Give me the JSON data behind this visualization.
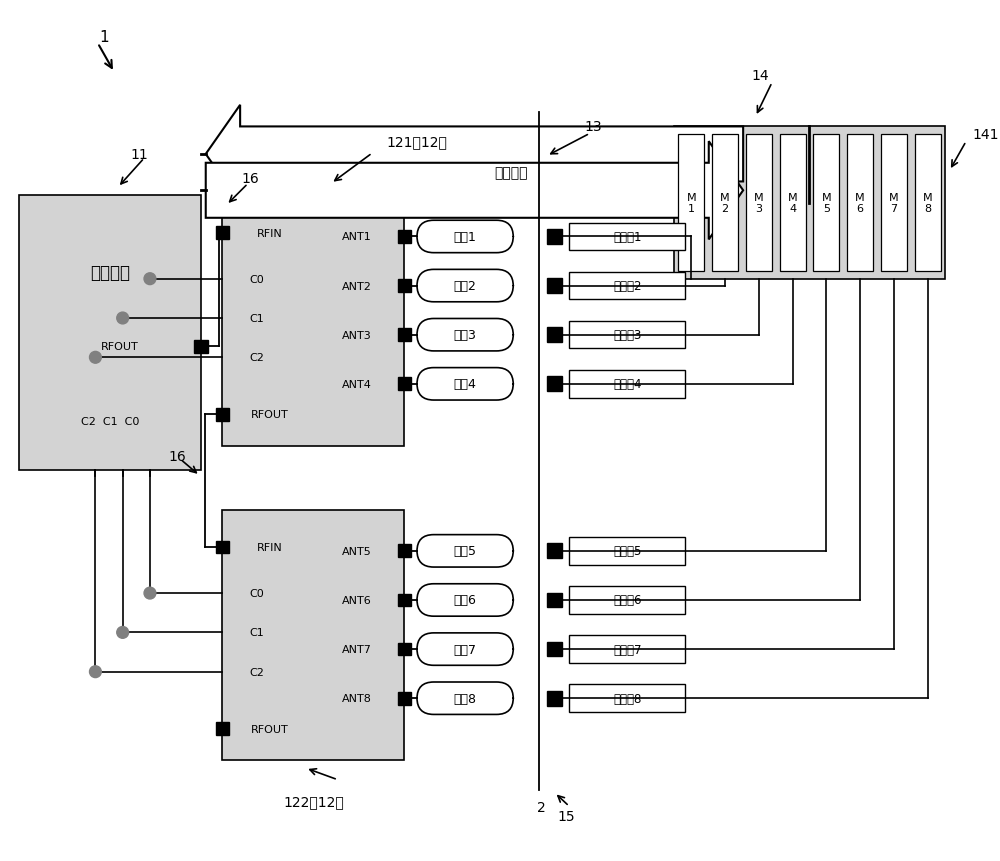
{
  "bg_color": "#ffffff",
  "gray_fill": "#d3d3d3",
  "white_fill": "#ffffff",
  "black": "#000000",
  "label_1": "1",
  "label_11": "11",
  "label_14": "14",
  "label_141": "141",
  "label_16a": "16",
  "label_16b": "16",
  "label_121": "121（12）",
  "label_122": "122（12）",
  "label_13": "13",
  "label_15": "15",
  "label_2": "2",
  "rf_module_text": "射频模块",
  "rf_module_rfout": "RFOUT",
  "rf_module_c": "C2  C1  C0",
  "data_bus_text": "数据总线",
  "mux_left_labels": [
    "RFIN",
    "C0",
    "C1",
    "C2",
    "RFOUT"
  ],
  "mux1_ant_labels": [
    "ANT1",
    "ANT2",
    "ANT3",
    "ANT4"
  ],
  "mux2_ant_labels": [
    "ANT5",
    "ANT6",
    "ANT7",
    "ANT8"
  ],
  "antenna_labels": [
    "天线1",
    "天线2",
    "天线3",
    "天线4",
    "天线5",
    "天线6",
    "天线7",
    "天线8"
  ],
  "mag_labels": [
    "磁钐生1",
    "磁钐生2",
    "磁钐生3",
    "磁钐生4",
    "磁钐生5",
    "磁钐生6",
    "磁钐生7",
    "磁钐生8"
  ],
  "m_labels": [
    "M\n1",
    "M\n2",
    "M\n3",
    "M\n4",
    "M\n5",
    "M\n6",
    "M\n7",
    "M\n8"
  ]
}
